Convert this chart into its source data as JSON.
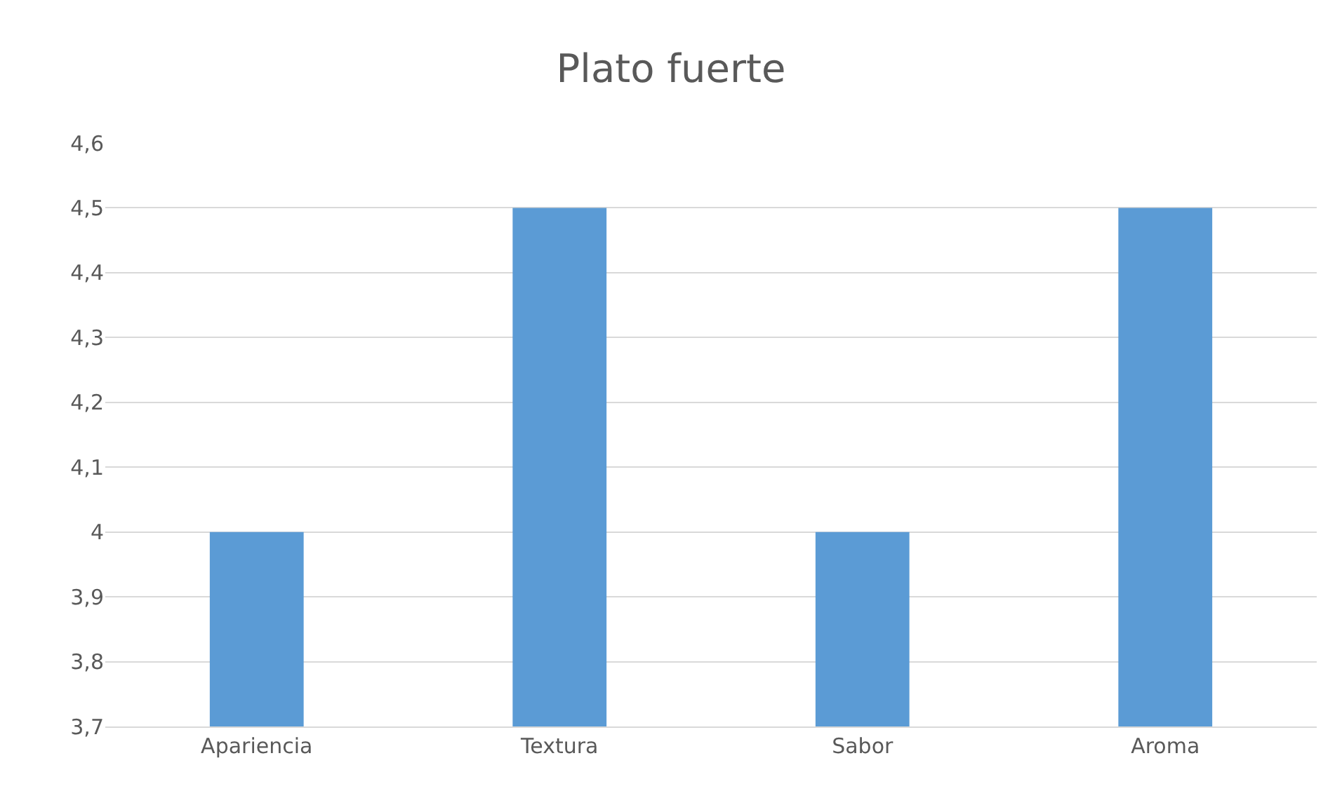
{
  "chart_data": {
    "type": "bar",
    "title": "Plato fuerte",
    "categories": [
      "Apariencia",
      "Textura",
      "Sabor",
      "Aroma"
    ],
    "values": [
      4,
      4.5,
      4,
      4.5
    ],
    "color": "#5b9bd5",
    "ylim": [
      3.7,
      4.6
    ],
    "yticks": [
      {
        "value": 3.7,
        "label": "3,7"
      },
      {
        "value": 3.8,
        "label": "3,8"
      },
      {
        "value": 3.9,
        "label": "3,9"
      },
      4,
      {
        "value": 4.1,
        "label": "4,1"
      },
      {
        "value": 4.2,
        "label": "4,2"
      },
      {
        "value": 4.3,
        "label": "4,3"
      },
      {
        "value": 4.4,
        "label": "4,4"
      },
      {
        "value": 4.5,
        "label": "4,5"
      },
      {
        "value": 4.6,
        "label": "4,6"
      }
    ],
    "grid": "y"
  }
}
